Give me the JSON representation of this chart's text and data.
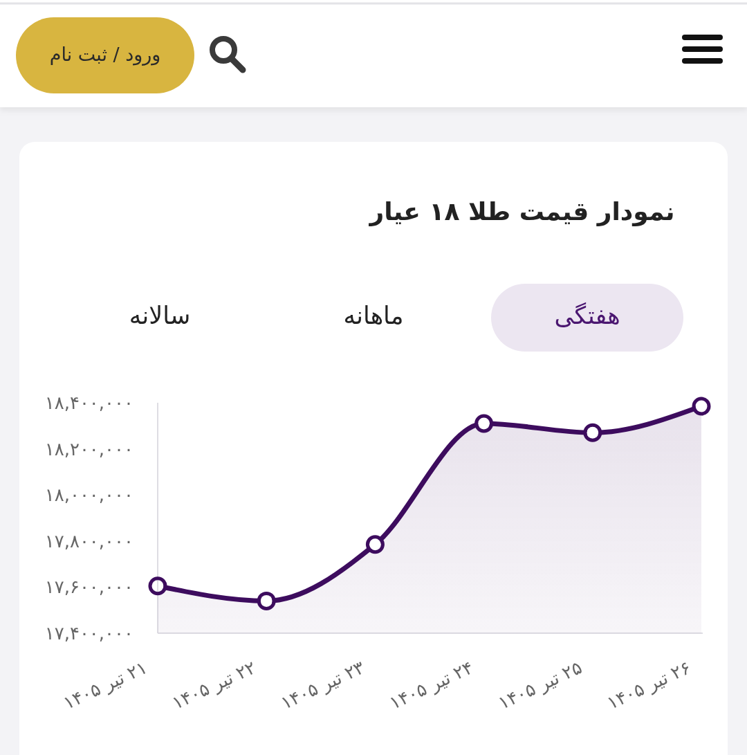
{
  "chart_data": {
    "type": "area",
    "title": "نمودار قیمت طلا ۱۸ عیار",
    "annotations": [
      "ورود / ثبت نام",
      "هفتگی",
      "ماهانه",
      "سالانه"
    ],
    "categories": [
      "۲۱ تیر ۱۴۰۵",
      "۲۲ تیر ۱۴۰۵",
      "۲۳ تیر ۱۴۰۵",
      "۲۴ تیر ۱۴۰۵",
      "۲۵ تیر ۱۴۰۵",
      "۲۶ تیر ۱۴۰۵"
    ],
    "series": [
      {
        "color": "#3d0c5e",
        "values": [
          17605000,
          17540000,
          17785000,
          18310000,
          18270000,
          18385000
        ]
      }
    ],
    "ylim": [
      17400000,
      18400000
    ],
    "yticks": [
      {
        "value": 17400000,
        "label": "۱۷,۴۰۰,۰۰۰"
      },
      {
        "value": 17600000,
        "label": "۱۷,۶۰۰,۰۰۰"
      },
      {
        "value": 17800000,
        "label": "۱۷,۸۰۰,۰۰۰"
      },
      {
        "value": 18000000,
        "label": "۱۸,۰۰۰,۰۰۰"
      },
      {
        "value": 18200000,
        "label": "۱۸,۲۰۰,۰۰۰"
      },
      {
        "value": 18400000,
        "label": "۱۸,۴۰۰,۰۰۰"
      }
    ],
    "marker": "circle"
  }
}
